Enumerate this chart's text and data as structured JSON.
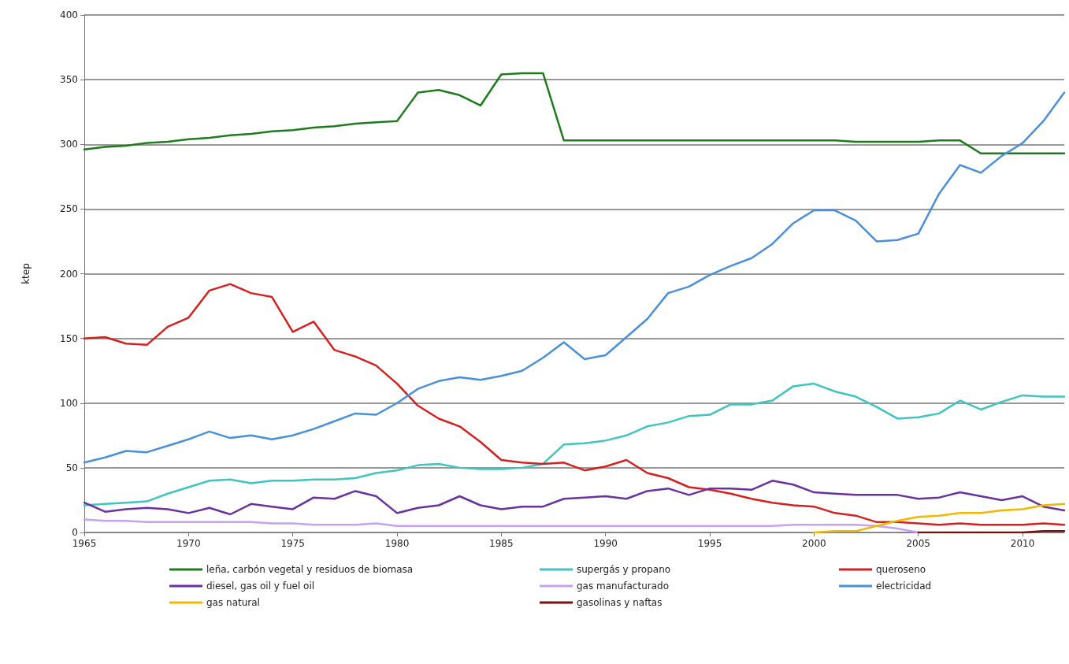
{
  "chart_data": {
    "type": "line",
    "ylabel": "ktep",
    "x": [
      1965,
      1966,
      1967,
      1968,
      1969,
      1970,
      1971,
      1972,
      1973,
      1974,
      1975,
      1976,
      1977,
      1978,
      1979,
      1980,
      1981,
      1982,
      1983,
      1984,
      1985,
      1986,
      1987,
      1988,
      1989,
      1990,
      1991,
      1992,
      1993,
      1994,
      1995,
      1996,
      1997,
      1998,
      1999,
      2000,
      2001,
      2002,
      2003,
      2004,
      2005,
      2006,
      2007,
      2008,
      2009,
      2010,
      2011,
      2012
    ],
    "xlim": [
      1965,
      2012
    ],
    "xticks": [
      1965,
      1970,
      1975,
      1980,
      1985,
      1990,
      1995,
      2000,
      2005,
      2010
    ],
    "ylim": [
      0,
      400
    ],
    "yticks": [
      0,
      50,
      100,
      150,
      200,
      250,
      300,
      350,
      400
    ],
    "grid": "y",
    "legend": "bottom",
    "marker": "none",
    "line_style": "solid",
    "series": [
      {
        "name": "leña, carbón vegetal y residuos de biomasa",
        "color": "#1e7b1e",
        "values": [
          296,
          298,
          299,
          301,
          302,
          304,
          305,
          307,
          308,
          310,
          311,
          313,
          314,
          316,
          317,
          318,
          340,
          342,
          338,
          330,
          354,
          355,
          355,
          303,
          303,
          303,
          303,
          303,
          303,
          303,
          303,
          303,
          303,
          303,
          303,
          303,
          303,
          302,
          302,
          302,
          302,
          303,
          303,
          293,
          293,
          293,
          293,
          293
        ]
      },
      {
        "name": "supergás y propano",
        "color": "#40c4c0",
        "values": [
          21,
          22,
          23,
          24,
          30,
          35,
          40,
          41,
          38,
          40,
          40,
          41,
          41,
          42,
          46,
          48,
          52,
          53,
          50,
          49,
          49,
          50,
          53,
          68,
          69,
          71,
          75,
          82,
          85,
          90,
          91,
          99,
          99,
          102,
          113,
          115,
          109,
          105,
          97,
          88,
          89,
          92,
          102,
          95,
          101,
          106,
          105,
          105
        ]
      },
      {
        "name": "queroseno",
        "color": "#d42020",
        "values": [
          150,
          151,
          146,
          145,
          159,
          166,
          187,
          192,
          185,
          182,
          155,
          163,
          141,
          136,
          129,
          115,
          98,
          88,
          82,
          70,
          56,
          54,
          53,
          54,
          48,
          51,
          56,
          46,
          42,
          35,
          33,
          30,
          26,
          23,
          21,
          20,
          15,
          13,
          8,
          8,
          7,
          6,
          7,
          6,
          6,
          6,
          7,
          6
        ]
      },
      {
        "name": "diesel, gas oil y fuel oil",
        "color": "#6a329f",
        "values": [
          23,
          16,
          18,
          19,
          18,
          15,
          19,
          14,
          22,
          20,
          18,
          27,
          26,
          32,
          28,
          15,
          19,
          21,
          28,
          21,
          18,
          20,
          20,
          26,
          27,
          28,
          26,
          32,
          34,
          29,
          34,
          34,
          33,
          40,
          37,
          31,
          30,
          29,
          29,
          29,
          26,
          27,
          31,
          28,
          25,
          28,
          20,
          17
        ]
      },
      {
        "name": "gas manufacturado",
        "color": "#c8a2f0",
        "values": [
          10,
          9,
          9,
          8,
          8,
          8,
          8,
          8,
          8,
          7,
          7,
          6,
          6,
          6,
          7,
          5,
          5,
          5,
          5,
          5,
          5,
          5,
          5,
          5,
          5,
          5,
          5,
          5,
          5,
          5,
          5,
          5,
          5,
          5,
          6,
          6,
          6,
          6,
          5,
          3,
          0,
          null,
          null,
          null,
          null,
          null,
          null,
          null
        ]
      },
      {
        "name": "electricidad",
        "color": "#4a90d9",
        "values": [
          54,
          58,
          63,
          62,
          67,
          72,
          78,
          73,
          75,
          72,
          75,
          80,
          86,
          92,
          91,
          100,
          111,
          117,
          120,
          118,
          121,
          125,
          135,
          147,
          134,
          137,
          151,
          165,
          185,
          190,
          199,
          206,
          212,
          223,
          239,
          249,
          249,
          241,
          225,
          226,
          231,
          262,
          284,
          278,
          291,
          301,
          318,
          340
        ]
      },
      {
        "name": "gas natural",
        "color": "#f0b800",
        "x": [
          2000,
          2001,
          2002,
          2003,
          2004,
          2005,
          2006,
          2007,
          2008,
          2009,
          2010,
          2011,
          2012
        ],
        "values": [
          0,
          1,
          1,
          5,
          9,
          12,
          13,
          15,
          15,
          17,
          18,
          21,
          22
        ]
      },
      {
        "name": "gasolinas y naftas",
        "color": "#7a1010",
        "x": [
          2005,
          2006,
          2007,
          2008,
          2009,
          2010,
          2011,
          2012
        ],
        "values": [
          0,
          0,
          0,
          0,
          0,
          0,
          1,
          1
        ]
      }
    ]
  }
}
